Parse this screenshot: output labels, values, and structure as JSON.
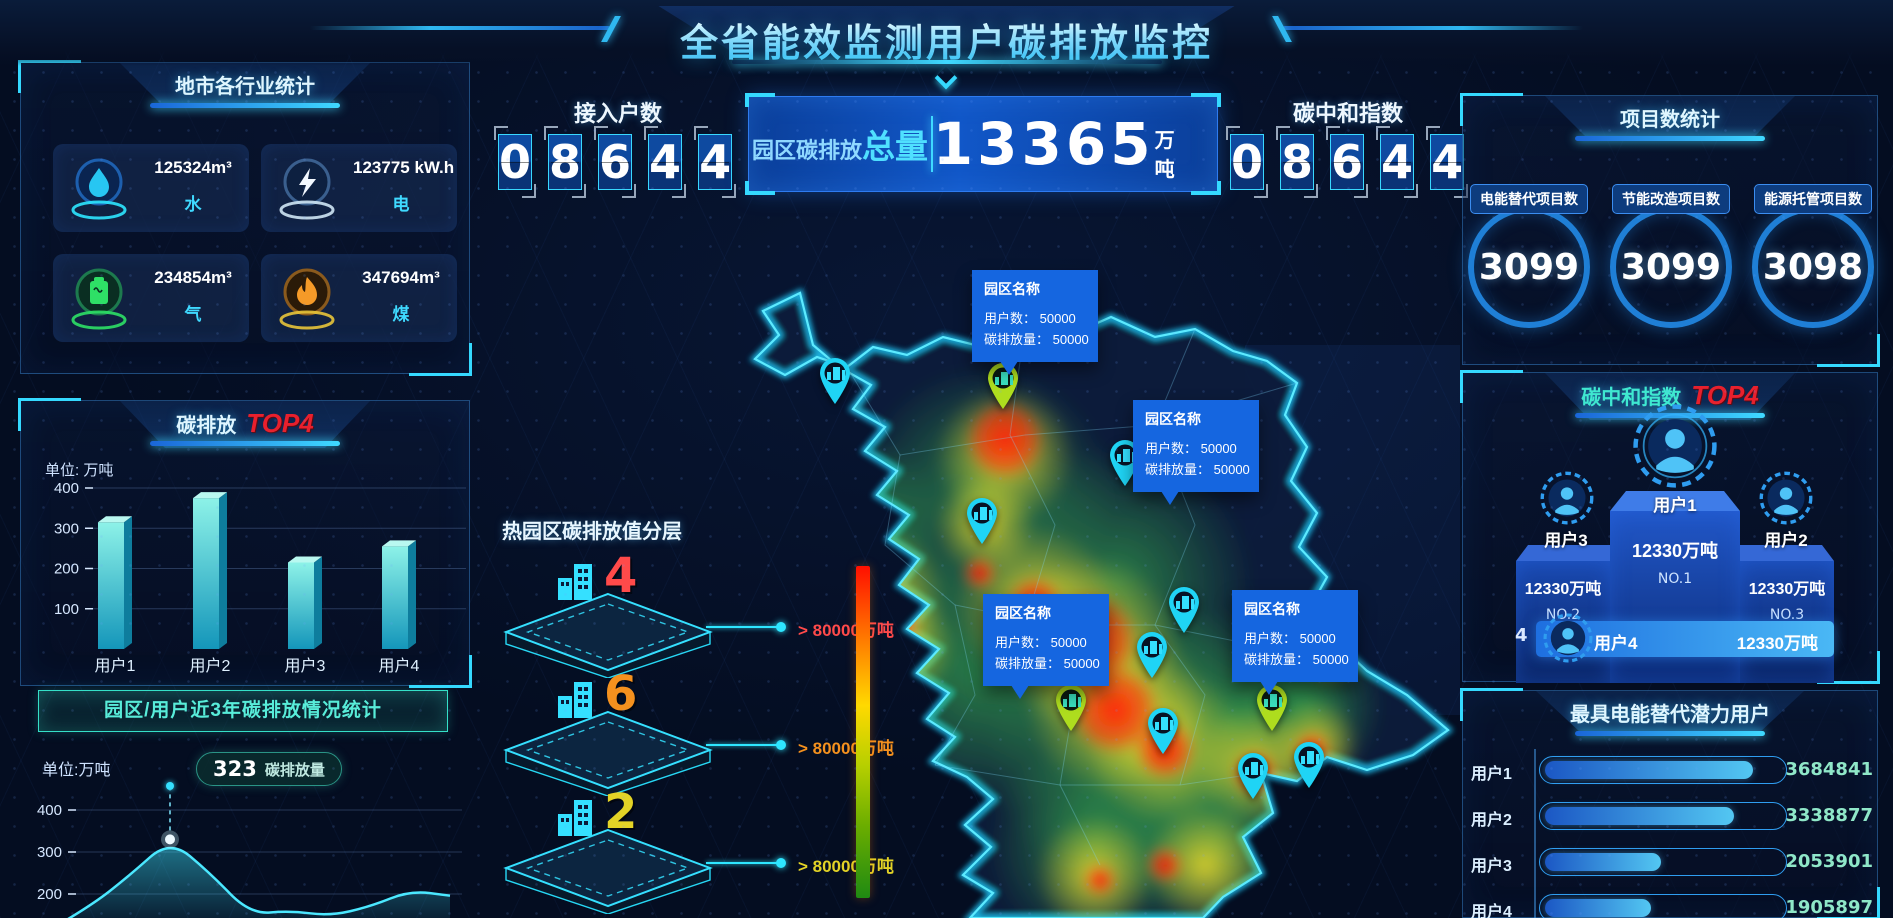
{
  "header": {
    "title": "全省能效监测用户碳排放监控"
  },
  "kpi": {
    "access_label": "接入户数",
    "access_digits": [
      "0",
      "8",
      "6",
      "4",
      "4"
    ],
    "total_prefix": "园区碳排放",
    "total_emph": "总量",
    "total_value": "13365",
    "total_unit": "万吨",
    "neutral_label": "碳中和指数",
    "neutral_digits": [
      "0",
      "8",
      "6",
      "4",
      "4"
    ]
  },
  "industry": {
    "title": "地市各行业统计",
    "cards": [
      {
        "icon": "water-icon",
        "value": "125324m³",
        "label": "水"
      },
      {
        "icon": "electricity-icon",
        "value": "123775 kW.h",
        "label": "电"
      },
      {
        "icon": "gas-icon",
        "value": "234854m³",
        "label": "气"
      },
      {
        "icon": "coal-icon",
        "value": "347694m³",
        "label": "煤"
      }
    ]
  },
  "emission_top4": {
    "title": "碳排放",
    "title_accent": "TOP4",
    "unit": "单位: 万吨",
    "chart": {
      "type": "bar",
      "categories": [
        "用户1",
        "用户2",
        "用户3",
        "用户4"
      ],
      "values": [
        315,
        375,
        215,
        255
      ],
      "yticks": [
        400,
        300,
        200,
        100
      ],
      "ymax": 430
    }
  },
  "trend": {
    "button_label": "园区/用户近3年碳排放情况统计",
    "unit": "单位:万吨",
    "tooltip_value": "323",
    "tooltip_label": "碳排放量",
    "chart": {
      "type": "area",
      "values": [
        115,
        170,
        245,
        330,
        250,
        152,
        160,
        148,
        170,
        208,
        196
      ],
      "yticks": [
        400,
        300,
        200
      ],
      "peak_index": 3
    }
  },
  "map": {
    "tooltips": [
      {
        "title": "园区名称",
        "users_label": "用户数：",
        "users": "50000",
        "emission_label": "碳排放量：",
        "emission": "50000"
      },
      {
        "title": "园区名称",
        "users_label": "用户数：",
        "users": "50000",
        "emission_label": "碳排放量：",
        "emission": "50000"
      },
      {
        "title": "园区名称",
        "users_label": "用户数：",
        "users": "50000",
        "emission_label": "碳排放量：",
        "emission": "50000"
      },
      {
        "title": "园区名称",
        "users_label": "用户数：",
        "users": "50000",
        "emission_label": "碳排放量：",
        "emission": "50000"
      }
    ]
  },
  "layers": {
    "title": "热园区碳排放值分层",
    "items": [
      {
        "count": "4",
        "threshold": "> 80000万吨",
        "color": "#ff4a4a"
      },
      {
        "count": "6",
        "threshold": "> 80000万吨",
        "color": "#f5911e"
      },
      {
        "count": "2",
        "threshold": "> 80000万吨",
        "color": "#e3d326"
      }
    ]
  },
  "projects": {
    "title": "项目数统计",
    "items": [
      {
        "label": "电能替代项目数",
        "value": "3099"
      },
      {
        "label": "节能改造项目数",
        "value": "3099"
      },
      {
        "label": "能源托管项目数",
        "value": "3098"
      }
    ]
  },
  "neutral_top4": {
    "title": "碳中和指数",
    "title_accent": "TOP4",
    "first": {
      "name": "用户1",
      "value": "12330万吨",
      "rank": "NO.1"
    },
    "second": {
      "name": "用户3",
      "value": "12330万吨",
      "rank": "NO.2"
    },
    "third": {
      "name": "用户2",
      "value": "12330万吨",
      "rank": "NO.3"
    },
    "fourth": {
      "rank": "4",
      "name": "用户4",
      "value": "12330万吨"
    }
  },
  "potential": {
    "title": "最具电能替代潜力用户",
    "rows": [
      {
        "name": "用户1",
        "value": "3684841",
        "pct": 88
      },
      {
        "name": "用户2",
        "value": "3338877",
        "pct": 80
      },
      {
        "name": "用户3",
        "value": "2053901",
        "pct": 49
      },
      {
        "name": "用户4",
        "value": "1905897",
        "pct": 45
      }
    ]
  }
}
